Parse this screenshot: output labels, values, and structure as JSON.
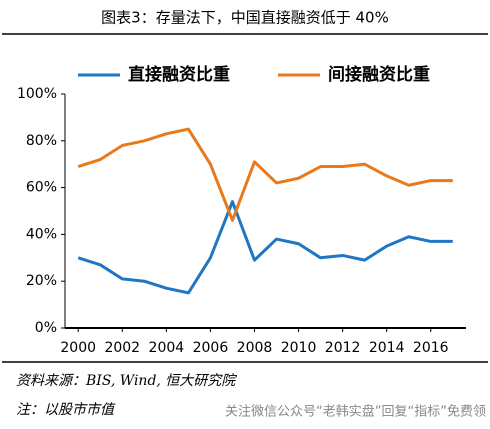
{
  "chart_data": {
    "type": "line",
    "title": "图表3：存量法下，中国直接融资低于 40%",
    "x": [
      2000,
      2001,
      2002,
      2003,
      2004,
      2005,
      2006,
      2007,
      2008,
      2009,
      2010,
      2011,
      2012,
      2013,
      2014,
      2015,
      2016,
      2017
    ],
    "series": [
      {
        "name": "直接融资比重",
        "color": "#1f77c4",
        "values": [
          30,
          27,
          21,
          20,
          17,
          15,
          30,
          54,
          29,
          38,
          36,
          30,
          31,
          29,
          35,
          39,
          37,
          37
        ]
      },
      {
        "name": "间接融资比重",
        "color": "#e87a1c",
        "values": [
          69,
          72,
          78,
          80,
          83,
          85,
          70,
          46,
          71,
          62,
          64,
          69,
          69,
          70,
          65,
          61,
          63,
          63
        ]
      }
    ],
    "xlim": [
      1999.4,
      2017.6
    ],
    "xticks": [
      2000,
      2002,
      2004,
      2006,
      2008,
      2010,
      2012,
      2014,
      2016
    ],
    "ylim": [
      0,
      100
    ],
    "yticks": [
      {
        "value": 0,
        "label": "0%"
      },
      {
        "value": 20,
        "label": "20%"
      },
      {
        "value": 40,
        "label": "40%"
      },
      {
        "value": 60,
        "label": "60%"
      },
      {
        "value": 80,
        "label": "80%"
      },
      {
        "value": 100,
        "label": "100%"
      }
    ],
    "grid": false,
    "legend": "top",
    "source": "资料来源：BIS, Wind, 恒大研究院",
    "note": "注：以股市市值",
    "watermark": "关注微信公众号“老韩实盘”回复“指标”免费领"
  }
}
